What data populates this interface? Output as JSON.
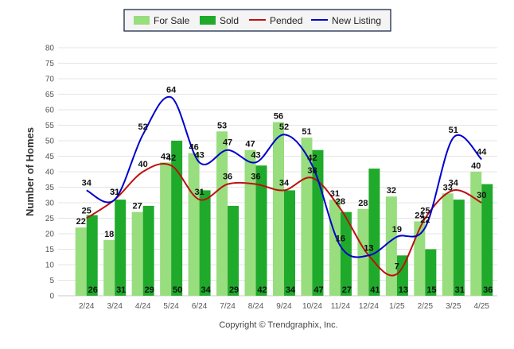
{
  "chart_data": {
    "type": "bar",
    "categories": [
      "2/24",
      "3/24",
      "4/24",
      "5/24",
      "6/24",
      "7/24",
      "8/24",
      "9/24",
      "10/24",
      "11/24",
      "12/24",
      "1/25",
      "2/25",
      "3/25",
      "4/25"
    ],
    "series": [
      {
        "name": "For Sale",
        "kind": "bar",
        "color": "#98dd7e",
        "values": [
          22,
          18,
          27,
          43,
          46,
          53,
          47,
          56,
          51,
          31,
          28,
          32,
          24,
          33,
          40
        ]
      },
      {
        "name": "Sold",
        "kind": "bar",
        "color": "#1faa2b",
        "values": [
          26,
          31,
          29,
          50,
          34,
          29,
          42,
          34,
          47,
          27,
          41,
          13,
          15,
          31,
          36
        ]
      },
      {
        "name": "Pended",
        "kind": "line",
        "color": "#bb1111",
        "values": [
          25,
          31,
          40,
          42,
          31,
          36,
          36,
          34,
          38,
          28,
          13,
          7,
          25,
          34,
          30
        ]
      },
      {
        "name": "New Listing",
        "kind": "line",
        "color": "#0000cc",
        "values": [
          34,
          31,
          52,
          64,
          43,
          47,
          43,
          52,
          42,
          16,
          13,
          19,
          22,
          51,
          44
        ]
      }
    ],
    "ylabel": "Number of Homes",
    "ylim": [
      0,
      80
    ],
    "yticks": [
      0,
      5,
      10,
      15,
      20,
      25,
      30,
      35,
      40,
      45,
      50,
      55,
      60,
      65,
      70,
      75,
      80
    ],
    "grid": true,
    "legend": "top-center",
    "footer": "Copyright © Trendgraphix, Inc."
  }
}
